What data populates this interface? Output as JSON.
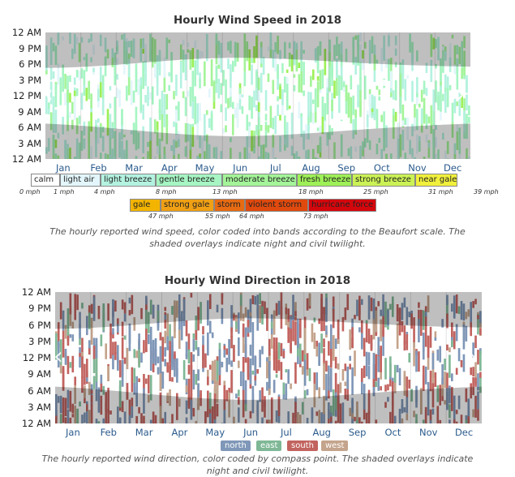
{
  "chart_data": [
    {
      "type": "heatmap",
      "title": "Hourly Wind Speed in 2018",
      "x_ticks": [
        "Jan",
        "Feb",
        "Mar",
        "Apr",
        "May",
        "Jun",
        "Jul",
        "Aug",
        "Sep",
        "Oct",
        "Nov",
        "Dec"
      ],
      "y_ticks": [
        "12 AM",
        "9 PM",
        "6 PM",
        "3 PM",
        "12 PM",
        "9 AM",
        "6 AM",
        "3 AM",
        "12 AM"
      ],
      "legend": [
        {
          "label": "calm",
          "color": "#ffffff"
        },
        {
          "label": "light air",
          "color": "#e3f6fb"
        },
        {
          "label": "light breeze",
          "color": "#b4f2e0"
        },
        {
          "label": "gentle breeze",
          "color": "#a6f5c3"
        },
        {
          "label": "moderate breeze",
          "color": "#a4f499"
        },
        {
          "label": "fresh breeze",
          "color": "#9ef057"
        },
        {
          "label": "strong breeze",
          "color": "#cbf255"
        },
        {
          "label": "near gale",
          "color": "#f1f03c"
        },
        {
          "label": "gale",
          "color": "#f3b400"
        },
        {
          "label": "strong gale",
          "color": "#f0a015"
        },
        {
          "label": "storm",
          "color": "#e76b13"
        },
        {
          "label": "violent storm",
          "color": "#e04a0e"
        },
        {
          "label": "hurricane force",
          "color": "#d4070d"
        }
      ],
      "legend_ticks_row1": [
        "0 mph",
        "1 mph",
        "4 mph",
        "8 mph",
        "13 mph",
        "18 mph",
        "25 mph",
        "31 mph",
        "39 mph"
      ],
      "legend_ticks_row2": [
        "47 mph",
        "55 mph",
        "64 mph",
        "73 mph"
      ],
      "caption": "The hourly reported wind speed, color coded into bands according to the Beaufort scale. The shaded overlays indicate night and civil twilight."
    },
    {
      "type": "heatmap",
      "title": "Hourly Wind Direction in 2018",
      "x_ticks": [
        "Jan",
        "Feb",
        "Mar",
        "Apr",
        "May",
        "Jun",
        "Jul",
        "Aug",
        "Sep",
        "Oct",
        "Nov",
        "Dec"
      ],
      "y_ticks": [
        "12 AM",
        "9 PM",
        "6 PM",
        "3 PM",
        "12 PM",
        "9 AM",
        "6 AM",
        "3 AM",
        "12 AM"
      ],
      "legend": [
        {
          "label": "north",
          "color": "#7f97b8"
        },
        {
          "label": "east",
          "color": "#7fb896"
        },
        {
          "label": "south",
          "color": "#c2635f"
        },
        {
          "label": "west",
          "color": "#c4a48c"
        }
      ],
      "caption": "The hourly reported wind direction, color coded by compass point. The shaded overlays indicate night and civil twilight."
    }
  ]
}
